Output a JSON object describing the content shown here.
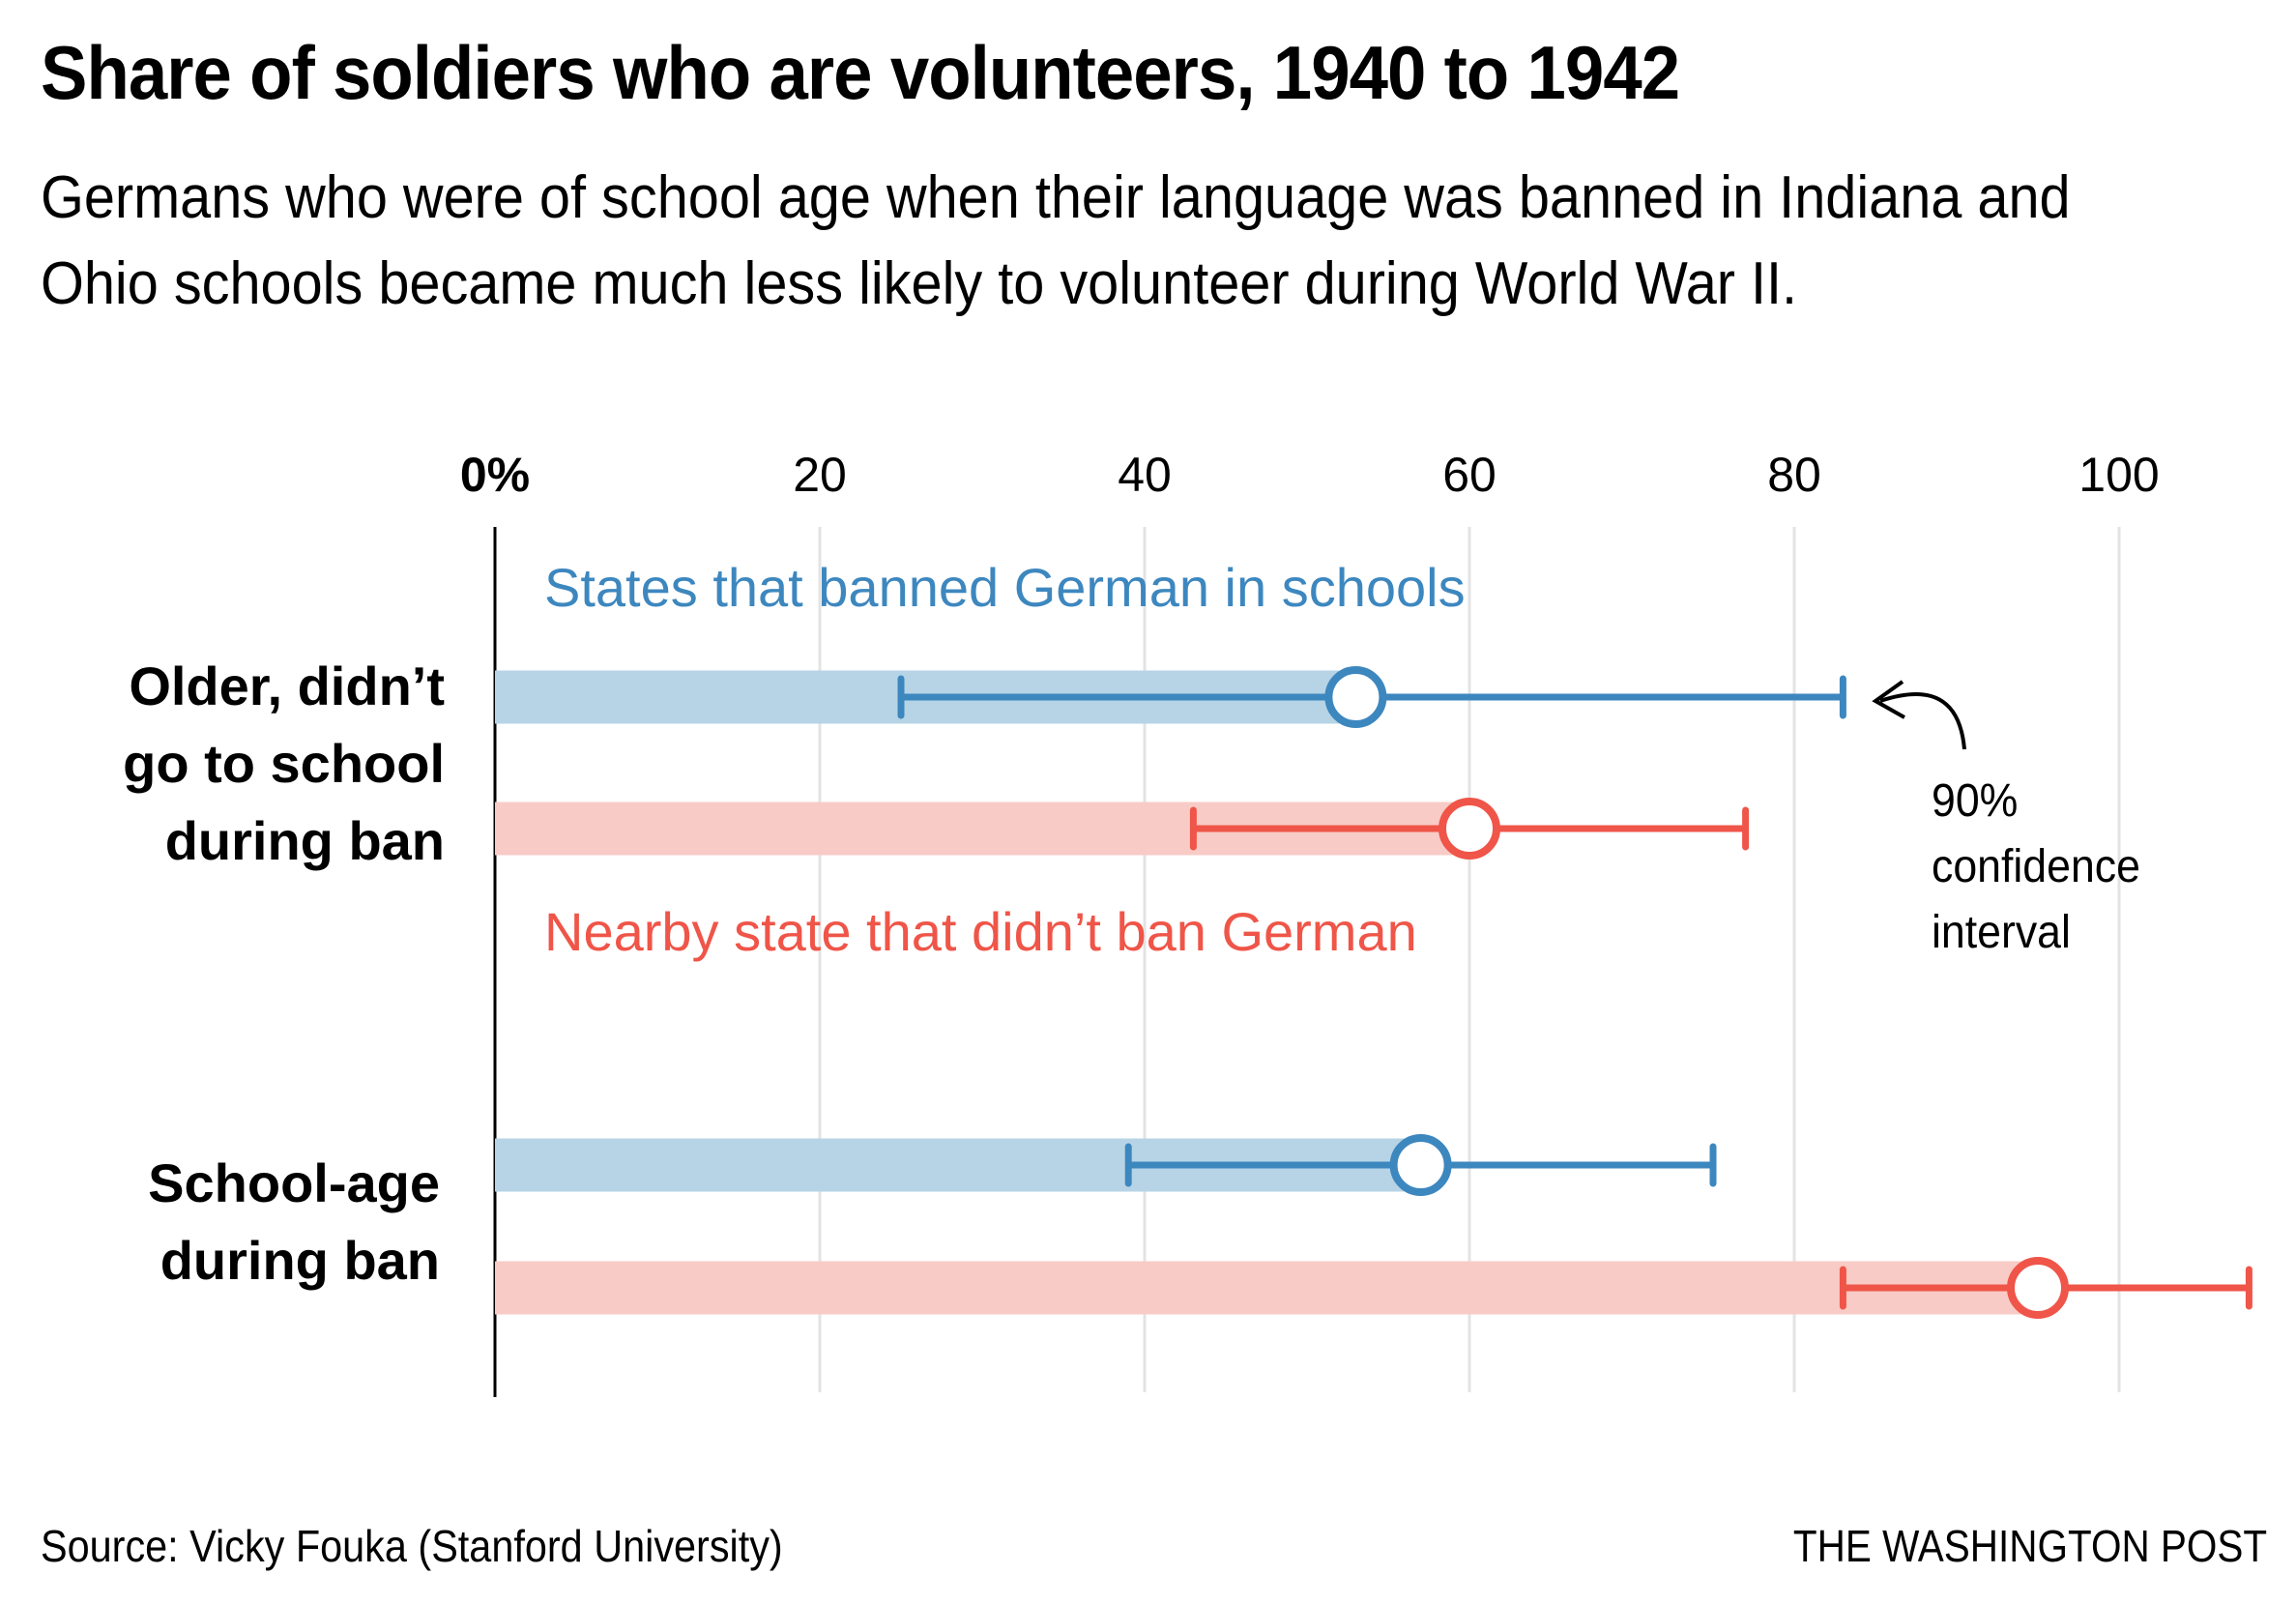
{
  "header": {
    "title": "Share of soldiers who are volunteers, 1940 to 1942",
    "subtitle": "Germans who were of school age when their language was banned in Indiana and Ohio schools became much less likely to volunteer during World War II."
  },
  "footer": {
    "source": "Source: Vicky Fouka (Stanford University)",
    "brand": "THE WASHINGTON POST"
  },
  "annotation": {
    "lines": [
      "90%",
      "confidence",
      "interval"
    ]
  },
  "colors": {
    "banned": "#3d87bf",
    "banned_bar": "#b6d4e6",
    "not_banned": "#ef5548",
    "not_banned_bar": "#f8cbc6",
    "grid": "#e3e3e3",
    "axis": "#000000"
  },
  "chart_data": {
    "type": "bar",
    "title": "Share of soldiers who are volunteers, 1940 to 1942",
    "xlabel": "",
    "ylabel": "",
    "xlim": [
      0,
      108
    ],
    "x_ticks": [
      0,
      20,
      40,
      60,
      80,
      100
    ],
    "x_tick_labels": [
      "0%",
      "20",
      "40",
      "60",
      "80",
      "100"
    ],
    "grid": true,
    "categories": [
      {
        "label_lines": [
          "Older, didn’t",
          "go to school",
          "during ban"
        ]
      },
      {
        "label_lines": [
          "School-age",
          "during ban"
        ]
      }
    ],
    "series": [
      {
        "name": "States that banned German in schools",
        "values": [
          53,
          57
        ],
        "ci_low": [
          25,
          39
        ],
        "ci_high": [
          83,
          75
        ]
      },
      {
        "name": "Nearby state that didn’t ban German",
        "values": [
          60,
          95
        ],
        "ci_low": [
          43,
          83
        ],
        "ci_high": [
          77,
          108
        ]
      }
    ],
    "error_bar_note": "90% confidence interval"
  }
}
